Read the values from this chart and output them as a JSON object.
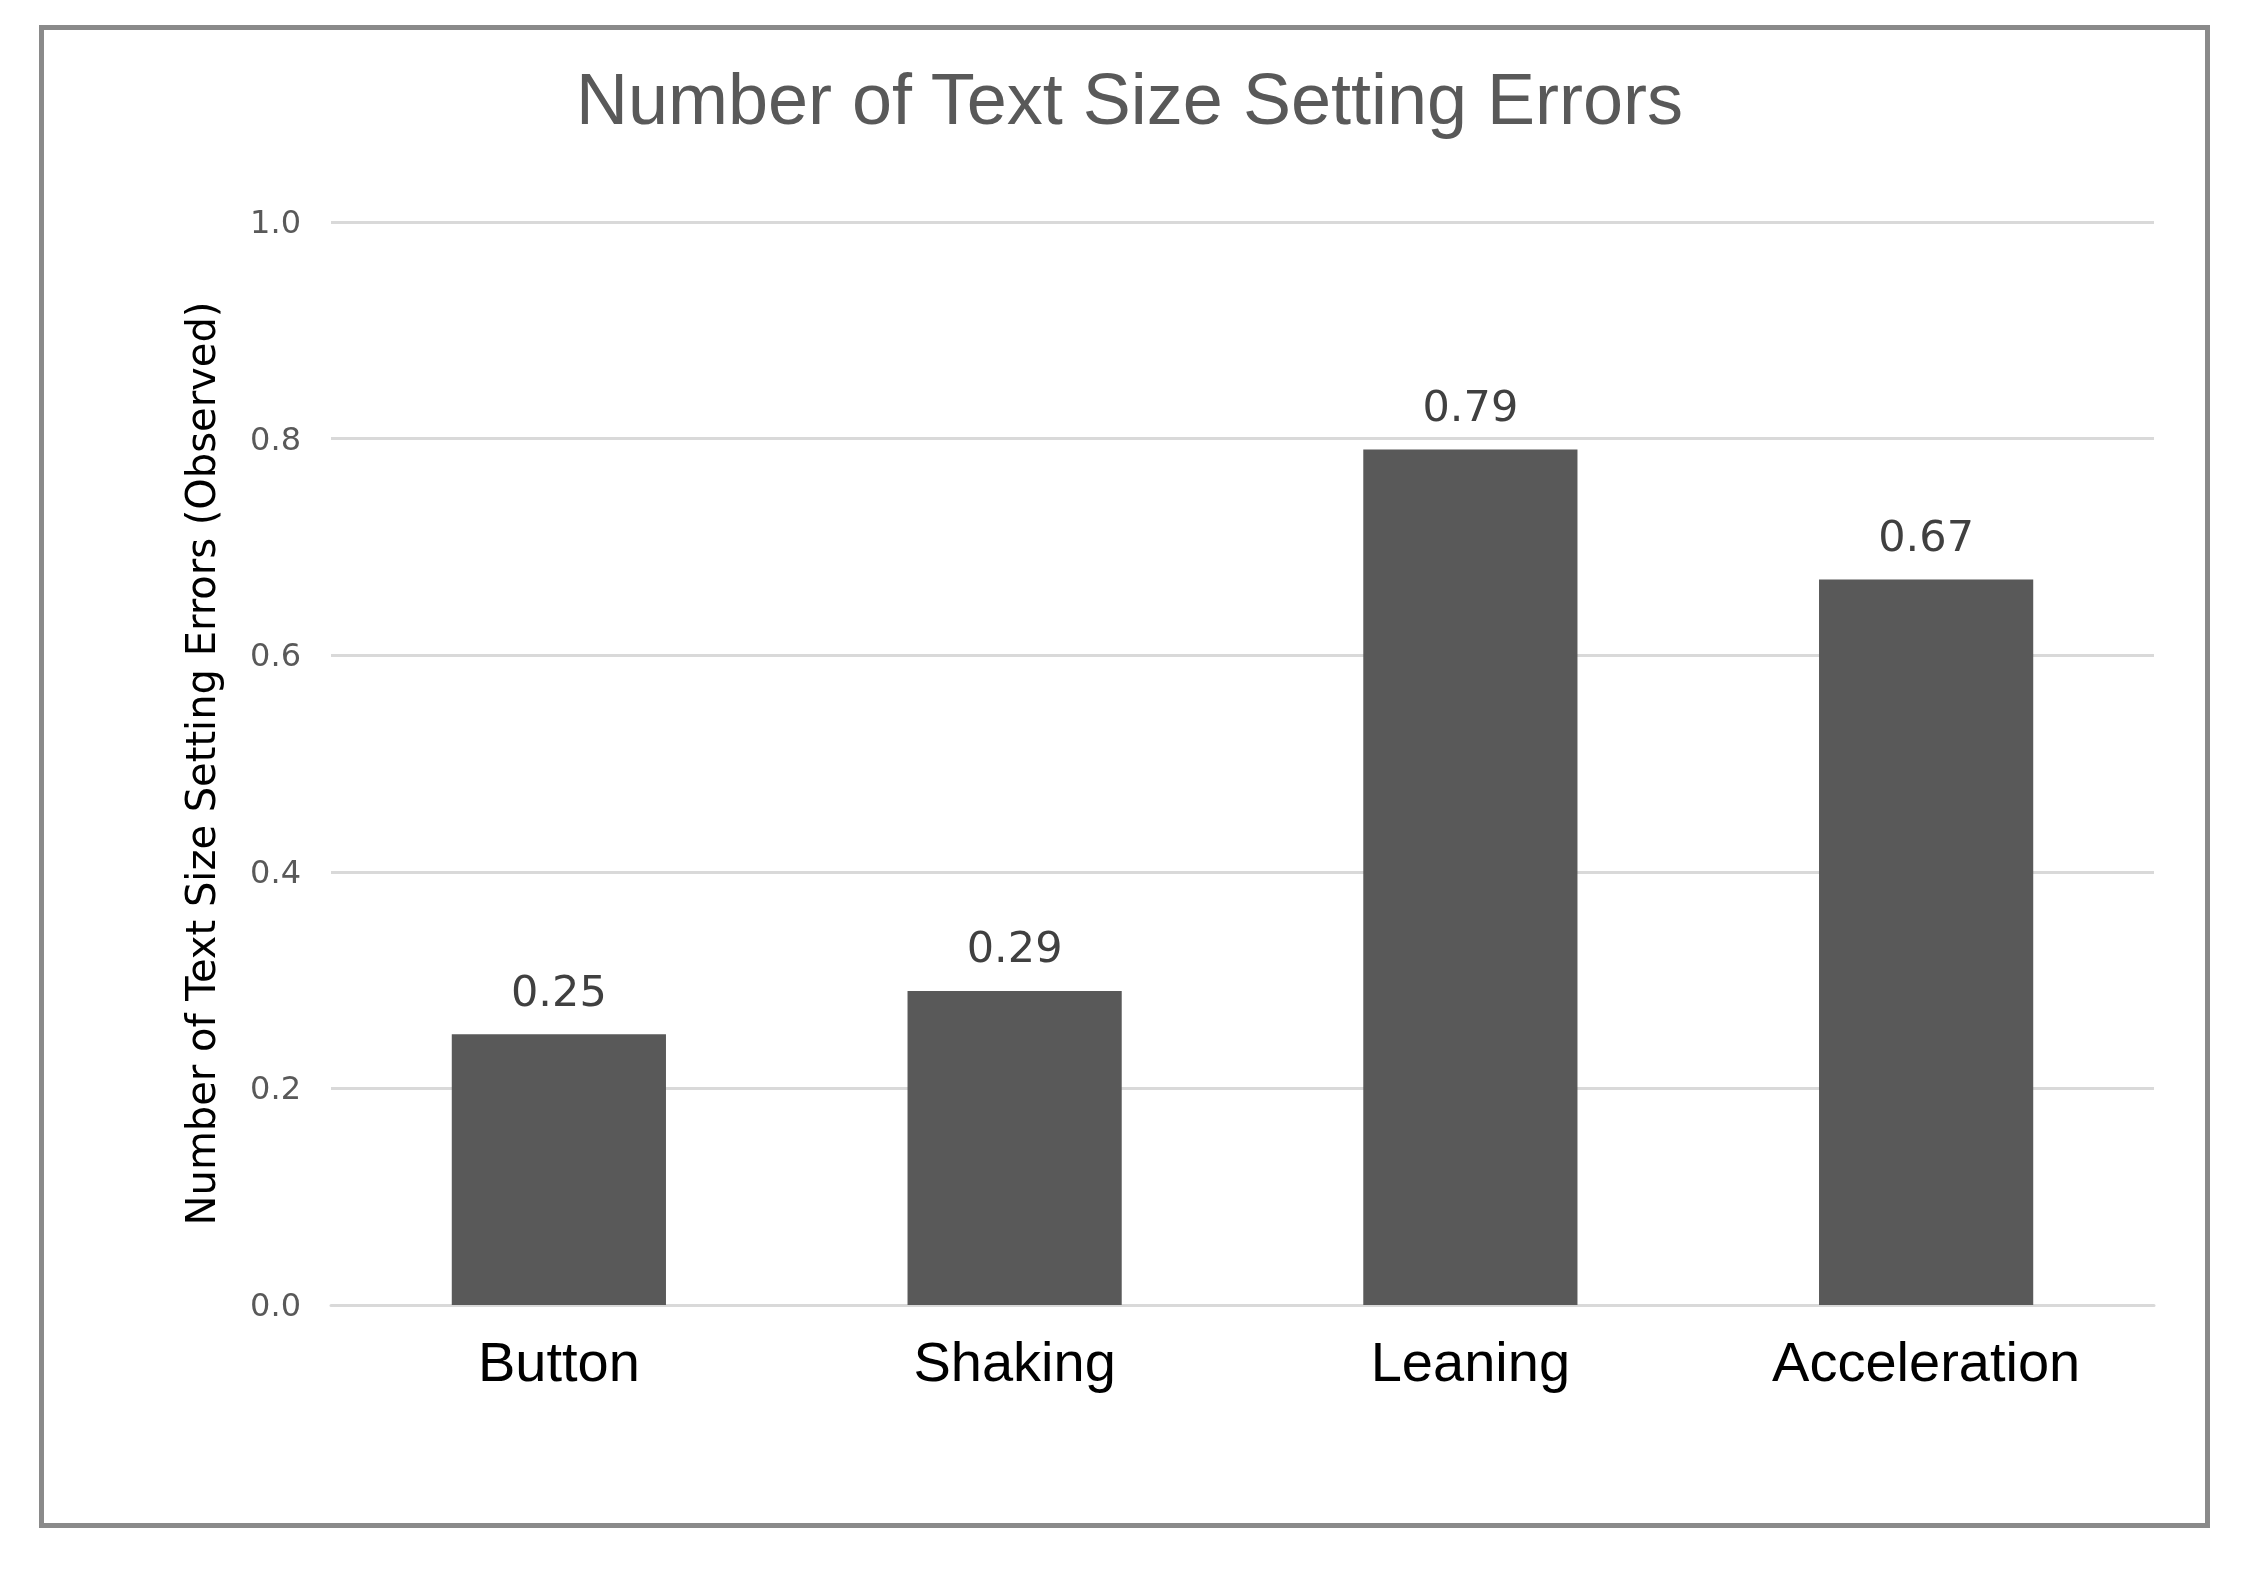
{
  "chart_data": {
    "type": "bar",
    "title": "Number of Text Size Setting Errors",
    "ylabel": "Number of Text Size Setting Errors (Observed)",
    "categories": [
      "Button",
      "Shaking",
      "Leaning",
      "Acceleration"
    ],
    "values": [
      0.25,
      0.29,
      0.79,
      0.67
    ],
    "color": "#595959",
    "ylim": [
      0,
      1
    ],
    "yticks": [
      {
        "value": 0,
        "label": "0.0"
      },
      {
        "value": 0.2,
        "label": "0.2"
      },
      {
        "value": 0.4,
        "label": "0.4"
      },
      {
        "value": 0.6,
        "label": "0.6"
      },
      {
        "value": 0.8,
        "label": "0.8"
      },
      {
        "value": 1,
        "label": "1.0"
      }
    ],
    "grid": "y",
    "data_labels": true
  }
}
